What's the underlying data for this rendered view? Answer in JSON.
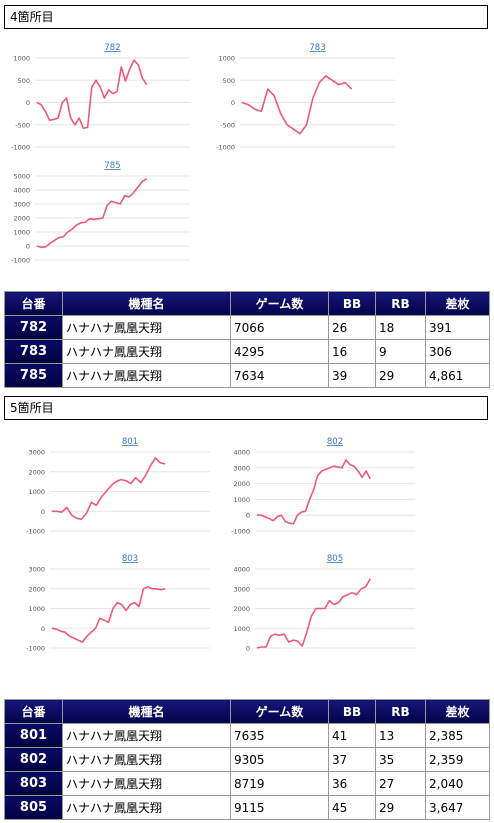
{
  "sections": [
    {
      "title": "4箇所目",
      "charts": [
        {
          "title": "782",
          "type": "line",
          "yticks": [
            "1000",
            "500",
            "0",
            "-500",
            "-1000"
          ],
          "ylim": [
            -1000,
            1000
          ],
          "values": [
            0,
            -50,
            -200,
            -400,
            -380,
            -350,
            0,
            100,
            -350,
            -500,
            -350,
            -580,
            -560,
            350,
            500,
            350,
            100,
            280,
            200,
            250,
            800,
            480,
            750,
            950,
            850,
            550,
            400
          ]
        },
        {
          "title": "783",
          "type": "line",
          "yticks": [
            "1000",
            "500",
            "0",
            "-500",
            "-1000"
          ],
          "ylim": [
            -1000,
            1000
          ],
          "values": [
            0,
            -50,
            -150,
            -200,
            300,
            150,
            -250,
            -500,
            -600,
            -700,
            -500,
            100,
            450,
            600,
            500,
            400,
            450,
            300
          ]
        },
        {
          "title": "785",
          "type": "line",
          "yticks": [
            "5000",
            "4000",
            "3000",
            "2000",
            "1000",
            "0",
            "-1000"
          ],
          "ylim": [
            -1000,
            5000
          ],
          "values": [
            0,
            -100,
            -50,
            200,
            400,
            600,
            650,
            1000,
            1200,
            1500,
            1650,
            1700,
            1950,
            1900,
            1950,
            2000,
            2900,
            3200,
            3100,
            3000,
            3600,
            3500,
            3800,
            4200,
            4600,
            4800
          ]
        }
      ],
      "table": {
        "headers": [
          "台番",
          "機種名",
          "ゲーム数",
          "BB",
          "RB",
          "差枚"
        ],
        "rows": [
          [
            "782",
            "ハナハナ鳳凰天翔",
            "7066",
            "26",
            "18",
            "391"
          ],
          [
            "783",
            "ハナハナ鳳凰天翔",
            "4295",
            "16",
            "9",
            "306"
          ],
          [
            "785",
            "ハナハナ鳳凰天翔",
            "7634",
            "39",
            "29",
            "4,861"
          ]
        ]
      }
    },
    {
      "title": "5箇所目",
      "charts": [
        {
          "title": "801",
          "type": "line",
          "yticks": [
            "3000",
            "2000",
            "1000",
            "0",
            "-1000"
          ],
          "ylim": [
            -1000,
            3000
          ],
          "values": [
            0,
            0,
            -50,
            200,
            -200,
            -350,
            -400,
            -100,
            450,
            300,
            700,
            1000,
            1300,
            1500,
            1600,
            1550,
            1400,
            1700,
            1450,
            1800,
            2300,
            2700,
            2450,
            2400
          ]
        },
        {
          "title": "802",
          "type": "line",
          "yticks": [
            "4000",
            "3000",
            "2000",
            "1000",
            "0",
            "-1000"
          ],
          "ylim": [
            -1000,
            4000
          ],
          "values": [
            0,
            0,
            -100,
            -200,
            -350,
            -100,
            0,
            -400,
            -500,
            -550,
            0,
            200,
            250,
            1000,
            1600,
            2500,
            2800,
            2900,
            3000,
            3100,
            3050,
            3000,
            3500,
            3200,
            3100,
            2800,
            2400,
            2800,
            2300
          ]
        },
        {
          "title": "803",
          "type": "line",
          "yticks": [
            "3000",
            "2000",
            "1000",
            "0",
            "-1000"
          ],
          "ylim": [
            -1000,
            3000
          ],
          "values": [
            0,
            -50,
            -150,
            -200,
            -400,
            -500,
            -600,
            -700,
            -400,
            -200,
            0,
            500,
            400,
            300,
            1000,
            1300,
            1200,
            900,
            1200,
            1300,
            1100,
            2000,
            2100,
            2000,
            2000,
            1950,
            2000
          ]
        },
        {
          "title": "805",
          "type": "line",
          "yticks": [
            "4000",
            "3000",
            "2000",
            "1000",
            "0"
          ],
          "ylim": [
            0,
            4000
          ],
          "values": [
            0,
            50,
            50,
            600,
            700,
            650,
            700,
            300,
            400,
            350,
            100,
            800,
            1600,
            2000,
            2000,
            2000,
            2400,
            2200,
            2300,
            2600,
            2700,
            2800,
            2700,
            3000,
            3100,
            3500
          ]
        }
      ],
      "table": {
        "headers": [
          "台番",
          "機種名",
          "ゲーム数",
          "BB",
          "RB",
          "差枚"
        ],
        "rows": [
          [
            "801",
            "ハナハナ鳳凰天翔",
            "7635",
            "41",
            "13",
            "2,385"
          ],
          [
            "802",
            "ハナハナ鳳凰天翔",
            "9305",
            "37",
            "35",
            "2,359"
          ],
          [
            "803",
            "ハナハナ鳳凰天翔",
            "8719",
            "36",
            "27",
            "2,040"
          ],
          [
            "805",
            "ハナハナ鳳凰天翔",
            "9115",
            "45",
            "29",
            "3,647"
          ]
        ]
      }
    }
  ],
  "colors": {
    "line": "#f0587a",
    "header_bg": "#0a0a66",
    "title_link": "#3a78c8"
  }
}
